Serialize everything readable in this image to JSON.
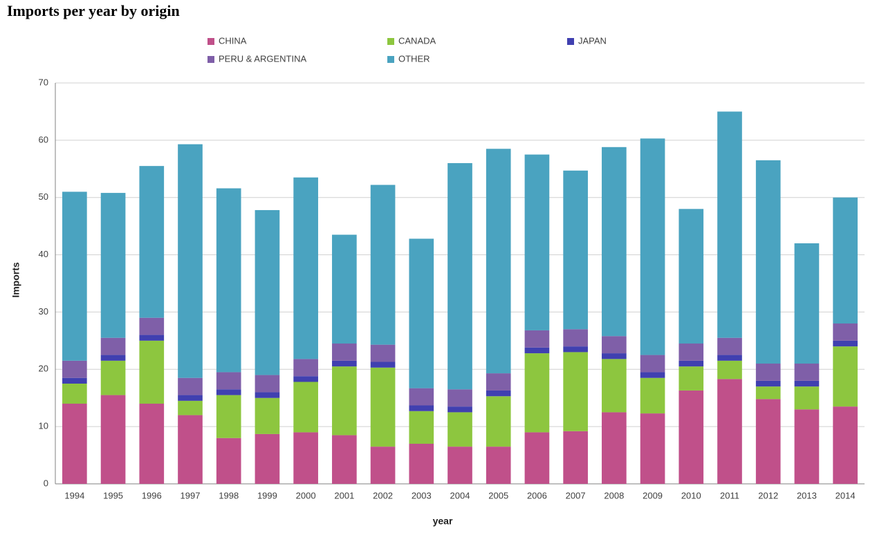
{
  "chart_data": {
    "type": "stacked_bar",
    "title": "Imports per year by origin",
    "x_label": "year",
    "y_label": "Imports",
    "categories": [
      "1994",
      "1995",
      "1996",
      "1997",
      "1998",
      "1999",
      "2000",
      "2001",
      "2002",
      "2003",
      "2004",
      "2005",
      "2006",
      "2007",
      "2008",
      "2009",
      "2010",
      "2011",
      "2012",
      "2013",
      "2014"
    ],
    "series": [
      {
        "name": "CHINA",
        "color": "#c0508a",
        "values": [
          14,
          15.5,
          14,
          12,
          8,
          8.7,
          9,
          8.5,
          6.5,
          7,
          6.5,
          6.5,
          9,
          9.2,
          12.5,
          12.3,
          16.3,
          18.3,
          14.8,
          13,
          13.5
        ]
      },
      {
        "name": "CANADA",
        "color": "#8dc63f",
        "values": [
          3.5,
          6,
          11,
          2.5,
          7.5,
          6.3,
          8.8,
          12,
          13.8,
          5.7,
          6,
          8.8,
          13.8,
          13.8,
          9.3,
          6.2,
          4.2,
          3.2,
          2.2,
          4,
          10.5
        ]
      },
      {
        "name": "JAPAN",
        "color": "#4040b0",
        "values": [
          1,
          1,
          1,
          1,
          1,
          1,
          1,
          1,
          1,
          1,
          1,
          1,
          1,
          1,
          1,
          1,
          1,
          1,
          1,
          1,
          1
        ]
      },
      {
        "name": "PERU & ARGENTINA",
        "color": "#7f5fa8",
        "values": [
          3,
          3,
          3,
          3,
          3,
          3,
          3,
          3,
          3,
          3,
          3,
          3,
          3,
          3,
          3,
          3,
          3,
          3,
          3,
          3,
          3
        ]
      },
      {
        "name": "OTHER",
        "color": "#4aa3c0",
        "values": [
          29.5,
          25.3,
          26.5,
          40.8,
          32.1,
          28.8,
          31.7,
          19,
          27.9,
          26.1,
          39.5,
          39.2,
          30.7,
          27.7,
          33,
          37.8,
          23.5,
          39.5,
          35.5,
          21,
          22
        ]
      }
    ],
    "ylim": [
      0,
      70
    ],
    "yticks": [
      0,
      10,
      20,
      30,
      40,
      50,
      60,
      70
    ],
    "grid": true
  }
}
